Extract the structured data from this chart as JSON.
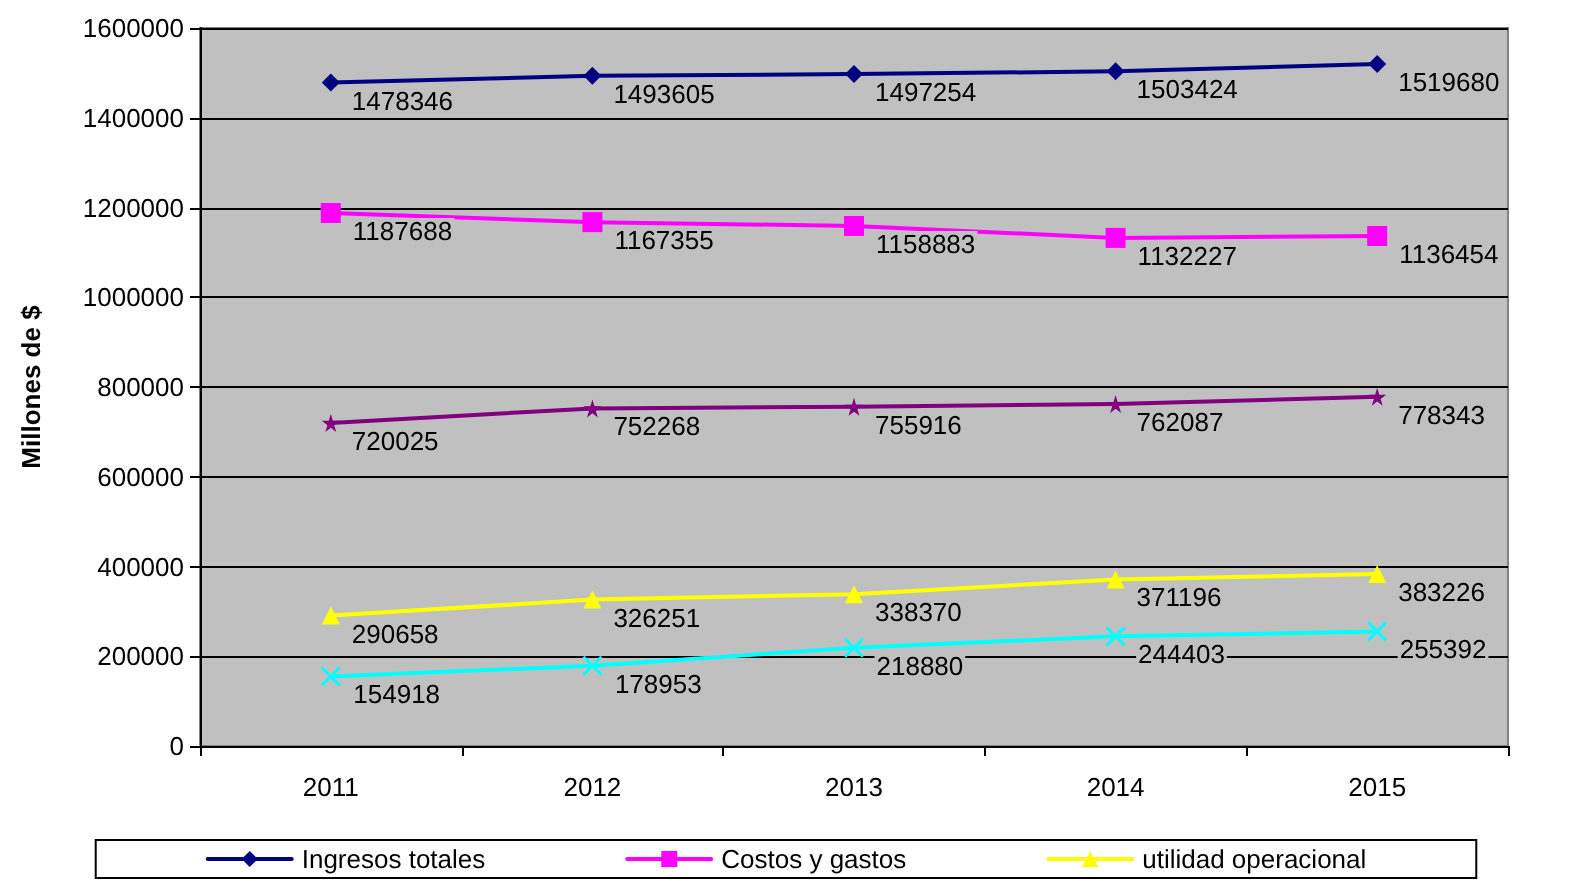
{
  "chart_data": {
    "type": "line",
    "ylabel": "Millones de $",
    "categories": [
      "2011",
      "2012",
      "2013",
      "2014",
      "2015"
    ],
    "series": [
      {
        "name": "Ingresos totales",
        "color": "#000080",
        "marker": "diamond",
        "values": [
          1478346,
          1493605,
          1497254,
          1503424,
          1519680
        ]
      },
      {
        "name": "Costos y gastos",
        "color": "#ff00ff",
        "marker": "square",
        "values": [
          1187688,
          1167355,
          1158883,
          1132227,
          1136454
        ]
      },
      {
        "name": "utilidad operacional",
        "color": "#ffff00",
        "marker": "triangle",
        "values": [
          290658,
          326251,
          338370,
          371196,
          383226
        ]
      },
      {
        "color": "#800080",
        "marker": "star",
        "values": [
          720025,
          752268,
          755916,
          762087,
          778343
        ]
      },
      {
        "color": "#00ffff",
        "marker": "cross",
        "values": [
          154918,
          178953,
          218880,
          244403,
          255392
        ]
      }
    ],
    "ylim": [
      0,
      1600000
    ],
    "yticks": [
      0,
      200000,
      400000,
      600000,
      800000,
      1000000,
      1200000,
      1400000,
      1600000
    ],
    "grid": "y",
    "legend": "bottom",
    "data_labels": true,
    "line_style": "solid"
  }
}
